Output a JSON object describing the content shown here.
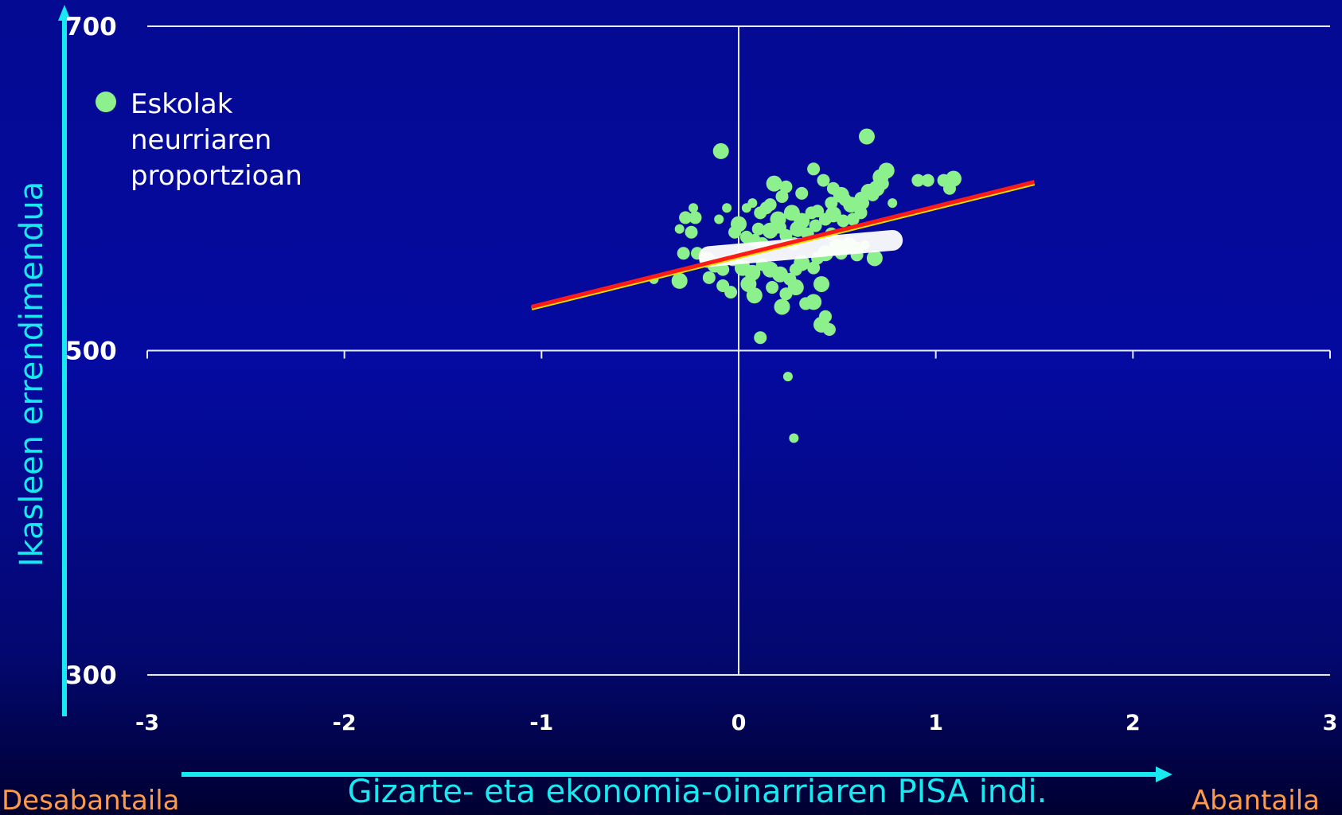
{
  "chart_data": {
    "type": "scatter",
    "title": "",
    "xlabel": "Gizarte- eta ekonomia-oinarriaren PISA indi.",
    "ylabel": "Ikasleen errendimendua",
    "xlim": [
      -3,
      3
    ],
    "ylim": [
      300,
      700
    ],
    "xticks": [
      "-3",
      "-2",
      "-1",
      "0",
      "1",
      "2",
      "3"
    ],
    "yticks": [
      "300",
      "500",
      "700"
    ],
    "x_left_label": "Desabantaila",
    "x_right_label": "Abantaila",
    "legend": {
      "label_lines": [
        "Eskolak",
        "neurriaren",
        "proportzioan"
      ],
      "placement": "top-left"
    },
    "grid": "horizontal lines at 300, 500, 700; vertical line at x = 0",
    "colors": {
      "points": "#8cf08c",
      "regression_line": "#ff1a1a",
      "regression_line_edge": "#f0e000",
      "within_school_band": "#ffffff",
      "axis_arrows": "#18e8f0"
    },
    "series": [
      {
        "kind": "points",
        "points": [
          {
            "x": -0.09,
            "y": 623,
            "s": 5
          },
          {
            "x": 0.65,
            "y": 632,
            "s": 5
          },
          {
            "x": 0.38,
            "y": 612,
            "s": 4
          },
          {
            "x": 0.75,
            "y": 611,
            "s": 5
          },
          {
            "x": 0.72,
            "y": 607,
            "s": 5
          },
          {
            "x": 0.91,
            "y": 605,
            "s": 4
          },
          {
            "x": 0.96,
            "y": 605,
            "s": 4
          },
          {
            "x": 1.04,
            "y": 605,
            "s": 4
          },
          {
            "x": 1.09,
            "y": 606,
            "s": 5
          },
          {
            "x": 1.07,
            "y": 600,
            "s": 4
          },
          {
            "x": 0.43,
            "y": 605,
            "s": 4
          },
          {
            "x": 0.18,
            "y": 603,
            "s": 5
          },
          {
            "x": 0.24,
            "y": 601,
            "s": 4
          },
          {
            "x": 0.32,
            "y": 597,
            "s": 4
          },
          {
            "x": 0.48,
            "y": 600,
            "s": 4
          },
          {
            "x": 0.52,
            "y": 596,
            "s": 5
          },
          {
            "x": 0.47,
            "y": 591,
            "s": 4
          },
          {
            "x": 0.54,
            "y": 593,
            "s": 4
          },
          {
            "x": 0.57,
            "y": 590,
            "s": 5
          },
          {
            "x": 0.62,
            "y": 594,
            "s": 4
          },
          {
            "x": 0.68,
            "y": 596,
            "s": 4
          },
          {
            "x": 0.7,
            "y": 600,
            "s": 5
          },
          {
            "x": 0.73,
            "y": 603,
            "s": 4
          },
          {
            "x": 0.66,
            "y": 598,
            "s": 5
          },
          {
            "x": 0.63,
            "y": 591,
            "s": 4
          },
          {
            "x": 0.78,
            "y": 591,
            "s": 3
          },
          {
            "x": 0.22,
            "y": 595,
            "s": 4
          },
          {
            "x": 0.16,
            "y": 590,
            "s": 4
          },
          {
            "x": 0.07,
            "y": 591,
            "s": 3
          },
          {
            "x": 0.04,
            "y": 588,
            "s": 3
          },
          {
            "x": -0.06,
            "y": 588,
            "s": 3
          },
          {
            "x": -0.23,
            "y": 588,
            "s": 3
          },
          {
            "x": -0.22,
            "y": 582,
            "s": 4
          },
          {
            "x": -0.1,
            "y": 581,
            "s": 3
          },
          {
            "x": 0.0,
            "y": 578,
            "s": 5
          },
          {
            "x": -0.02,
            "y": 573,
            "s": 4
          },
          {
            "x": 0.11,
            "y": 585,
            "s": 4
          },
          {
            "x": 0.14,
            "y": 588,
            "s": 4
          },
          {
            "x": 0.2,
            "y": 581,
            "s": 5
          },
          {
            "x": 0.27,
            "y": 585,
            "s": 5
          },
          {
            "x": 0.32,
            "y": 580,
            "s": 5
          },
          {
            "x": 0.37,
            "y": 585,
            "s": 4
          },
          {
            "x": 0.4,
            "y": 586,
            "s": 4
          },
          {
            "x": 0.44,
            "y": 581,
            "s": 4
          },
          {
            "x": 0.48,
            "y": 584,
            "s": 5
          },
          {
            "x": 0.53,
            "y": 580,
            "s": 4
          },
          {
            "x": 0.58,
            "y": 581,
            "s": 4
          },
          {
            "x": 0.62,
            "y": 585,
            "s": 4
          },
          {
            "x": 0.1,
            "y": 575,
            "s": 4
          },
          {
            "x": 0.16,
            "y": 574,
            "s": 5
          },
          {
            "x": 0.21,
            "y": 576,
            "s": 4
          },
          {
            "x": 0.24,
            "y": 571,
            "s": 4
          },
          {
            "x": 0.3,
            "y": 575,
            "s": 5
          },
          {
            "x": 0.35,
            "y": 572,
            "s": 4
          },
          {
            "x": 0.39,
            "y": 577,
            "s": 4
          },
          {
            "x": 0.04,
            "y": 570,
            "s": 4
          },
          {
            "x": 0.08,
            "y": 568,
            "s": 4
          },
          {
            "x": 0.12,
            "y": 566,
            "s": 4
          },
          {
            "x": 0.28,
            "y": 566,
            "s": 4
          },
          {
            "x": 0.47,
            "y": 572,
            "s": 4
          },
          {
            "x": 0.5,
            "y": 564,
            "s": 5
          },
          {
            "x": 0.56,
            "y": 565,
            "s": 5
          },
          {
            "x": 0.6,
            "y": 563,
            "s": 4
          },
          {
            "x": 0.64,
            "y": 565,
            "s": 3
          },
          {
            "x": -0.28,
            "y": 560,
            "s": 4
          },
          {
            "x": -0.21,
            "y": 560,
            "s": 4
          },
          {
            "x": -0.16,
            "y": 556,
            "s": 5
          },
          {
            "x": -0.12,
            "y": 553,
            "s": 5
          },
          {
            "x": -0.08,
            "y": 550,
            "s": 4
          },
          {
            "x": -0.03,
            "y": 556,
            "s": 4
          },
          {
            "x": 0.02,
            "y": 551,
            "s": 5
          },
          {
            "x": 0.07,
            "y": 548,
            "s": 5
          },
          {
            "x": 0.12,
            "y": 553,
            "s": 4
          },
          {
            "x": 0.16,
            "y": 550,
            "s": 5
          },
          {
            "x": 0.21,
            "y": 547,
            "s": 5
          },
          {
            "x": 0.26,
            "y": 544,
            "s": 4
          },
          {
            "x": 0.29,
            "y": 550,
            "s": 4
          },
          {
            "x": 0.32,
            "y": 554,
            "s": 5
          },
          {
            "x": 0.38,
            "y": 551,
            "s": 4
          },
          {
            "x": 0.4,
            "y": 557,
            "s": 4
          },
          {
            "x": 0.44,
            "y": 560,
            "s": 5
          },
          {
            "x": 0.52,
            "y": 560,
            "s": 4
          },
          {
            "x": 0.6,
            "y": 559,
            "s": 4
          },
          {
            "x": 0.69,
            "y": 557,
            "s": 5
          },
          {
            "x": -0.08,
            "y": 540,
            "s": 4
          },
          {
            "x": -0.15,
            "y": 545,
            "s": 4
          },
          {
            "x": -0.3,
            "y": 543,
            "s": 5
          },
          {
            "x": -0.43,
            "y": 544,
            "s": 3
          },
          {
            "x": -0.04,
            "y": 536,
            "s": 4
          },
          {
            "x": 0.05,
            "y": 541,
            "s": 5
          },
          {
            "x": 0.08,
            "y": 534,
            "s": 5
          },
          {
            "x": 0.17,
            "y": 539,
            "s": 4
          },
          {
            "x": 0.24,
            "y": 535,
            "s": 4
          },
          {
            "x": 0.29,
            "y": 539,
            "s": 5
          },
          {
            "x": 0.34,
            "y": 529,
            "s": 4
          },
          {
            "x": 0.38,
            "y": 530,
            "s": 5
          },
          {
            "x": 0.42,
            "y": 541,
            "s": 5
          },
          {
            "x": 0.22,
            "y": 527,
            "s": 5
          },
          {
            "x": 0.42,
            "y": 516,
            "s": 5
          },
          {
            "x": 0.44,
            "y": 521,
            "s": 4
          },
          {
            "x": 0.46,
            "y": 513,
            "s": 4
          },
          {
            "x": 0.11,
            "y": 508,
            "s": 4
          },
          {
            "x": 0.25,
            "y": 484,
            "s": 3
          },
          {
            "x": 0.28,
            "y": 446,
            "s": 3
          },
          {
            "x": -0.24,
            "y": 573,
            "s": 4
          },
          {
            "x": -0.27,
            "y": 582,
            "s": 4
          },
          {
            "x": -0.3,
            "y": 575,
            "s": 3
          }
        ]
      },
      {
        "kind": "band",
        "from": {
          "x": -0.15,
          "y": 558
        },
        "to": {
          "x": 0.78,
          "y": 568
        }
      },
      {
        "kind": "line",
        "from": {
          "x": -1.05,
          "y": 527
        },
        "to": {
          "x": 1.5,
          "y": 604
        }
      }
    ]
  }
}
